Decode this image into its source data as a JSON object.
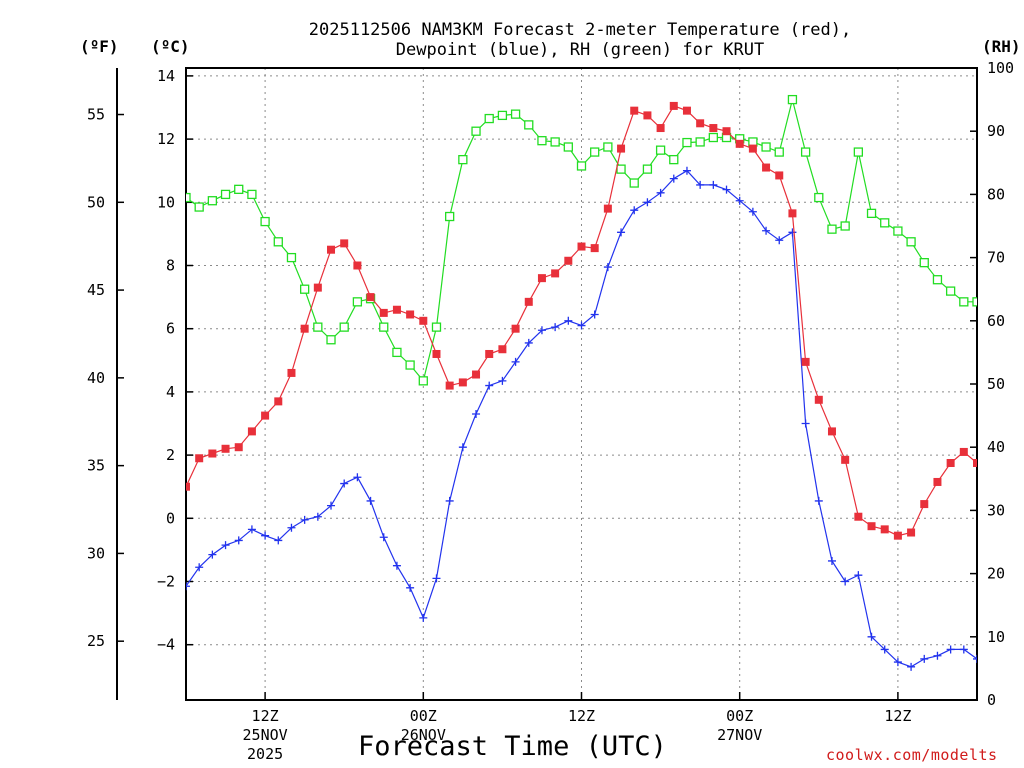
{
  "chart_data": {
    "type": "line",
    "title_line1": "2025112506 NAM3KM Forecast 2-meter Temperature (red),",
    "title_line2": "Dewpoint (blue), RH (green) for KRUT",
    "xlabel": "Forecast Time (UTC)",
    "ylabel_fahrenheit": "(ºF)",
    "ylabel_celsius": "(ºC)",
    "ylabel_rh": "(RH)",
    "credit": "coolwx.com/modelts",
    "ylim_c": [
      -5.75,
      14.25
    ],
    "ylim_rh": [
      0,
      100
    ],
    "x_count": 61,
    "x_ticks": [
      {
        "index": 6,
        "l1": "12Z",
        "l2": "25NOV",
        "l3": "2025"
      },
      {
        "index": 18,
        "l1": "00Z",
        "l2": "26NOV",
        "l3": ""
      },
      {
        "index": 30,
        "l1": "12Z",
        "l2": "",
        "l3": ""
      },
      {
        "index": 42,
        "l1": "00Z",
        "l2": "27NOV",
        "l3": ""
      },
      {
        "index": 54,
        "l1": "12Z",
        "l2": "",
        "l3": ""
      }
    ],
    "y_ticks_c": [
      "14",
      "12",
      "10",
      "8",
      "6",
      "4",
      "2",
      "0",
      "−2",
      "−4"
    ],
    "y_ticks_f": [
      "55",
      "50",
      "45",
      "40",
      "35",
      "30",
      "25"
    ],
    "y_ticks_rh": [
      "100",
      "90",
      "80",
      "70",
      "60",
      "50",
      "40",
      "30",
      "20",
      "10",
      "0"
    ],
    "series": [
      {
        "name": "Temperature (°C)",
        "color": "#e8303a",
        "marker": "filled-square",
        "values": [
          1.0,
          1.9,
          2.05,
          2.2,
          2.25,
          2.75,
          3.25,
          3.7,
          4.6,
          6.0,
          7.3,
          8.5,
          8.7,
          8.0,
          7.0,
          6.5,
          6.6,
          6.45,
          6.25,
          5.2,
          4.2,
          4.3,
          4.55,
          5.2,
          5.35,
          6.0,
          6.85,
          7.6,
          7.75,
          8.15,
          8.6,
          8.55,
          9.8,
          11.7,
          12.9,
          12.75,
          12.35,
          13.05,
          12.9,
          12.5,
          12.35,
          12.25,
          11.85,
          11.7,
          11.1,
          10.85,
          9.65,
          4.95,
          3.75,
          2.75,
          1.85,
          0.05,
          -0.25,
          -0.35,
          -0.55,
          -0.45,
          0.45,
          1.15,
          1.75,
          2.1,
          1.75
        ]
      },
      {
        "name": "Dewpoint (°C)",
        "color": "#2233ee",
        "marker": "plus",
        "values": [
          -2.15,
          -1.55,
          -1.15,
          -0.85,
          -0.7,
          -0.35,
          -0.55,
          -0.7,
          -0.3,
          -0.05,
          0.05,
          0.4,
          1.1,
          1.3,
          0.55,
          -0.6,
          -1.5,
          -2.2,
          -3.15,
          -1.9,
          0.55,
          2.25,
          3.3,
          4.2,
          4.35,
          4.95,
          5.55,
          5.95,
          6.05,
          6.25,
          6.1,
          6.45,
          7.95,
          9.05,
          9.75,
          10.0,
          10.3,
          10.75,
          11.0,
          10.55,
          10.55,
          10.4,
          10.05,
          9.7,
          9.1,
          8.8,
          9.05,
          3.0,
          0.55,
          -1.35,
          -2.0,
          -1.8,
          -3.75,
          -4.15,
          -4.55,
          -4.7,
          -4.45,
          -4.35,
          -4.15,
          -4.15,
          -4.45
        ]
      },
      {
        "name": "RH (%)",
        "color": "#22dd22",
        "marker": "open-square",
        "values": [
          79.5,
          78.0,
          79.0,
          80.0,
          80.8,
          80.0,
          75.7,
          72.5,
          70.0,
          65.0,
          59.0,
          57.0,
          59.0,
          63.0,
          63.5,
          59.0,
          55.0,
          53.0,
          50.5,
          59.0,
          76.5,
          85.5,
          90.0,
          92.0,
          92.5,
          92.7,
          91.0,
          88.5,
          88.3,
          87.5,
          84.5,
          86.7,
          87.5,
          84.0,
          81.8,
          84.0,
          87.0,
          85.5,
          88.2,
          88.3,
          89.0,
          89.0,
          88.8,
          88.3,
          87.5,
          86.7,
          95.0,
          86.7,
          79.5,
          74.5,
          75.0,
          86.7,
          77.0,
          75.5,
          74.2,
          72.5,
          69.2,
          66.5,
          64.7,
          63.0,
          63.0
        ]
      }
    ]
  }
}
